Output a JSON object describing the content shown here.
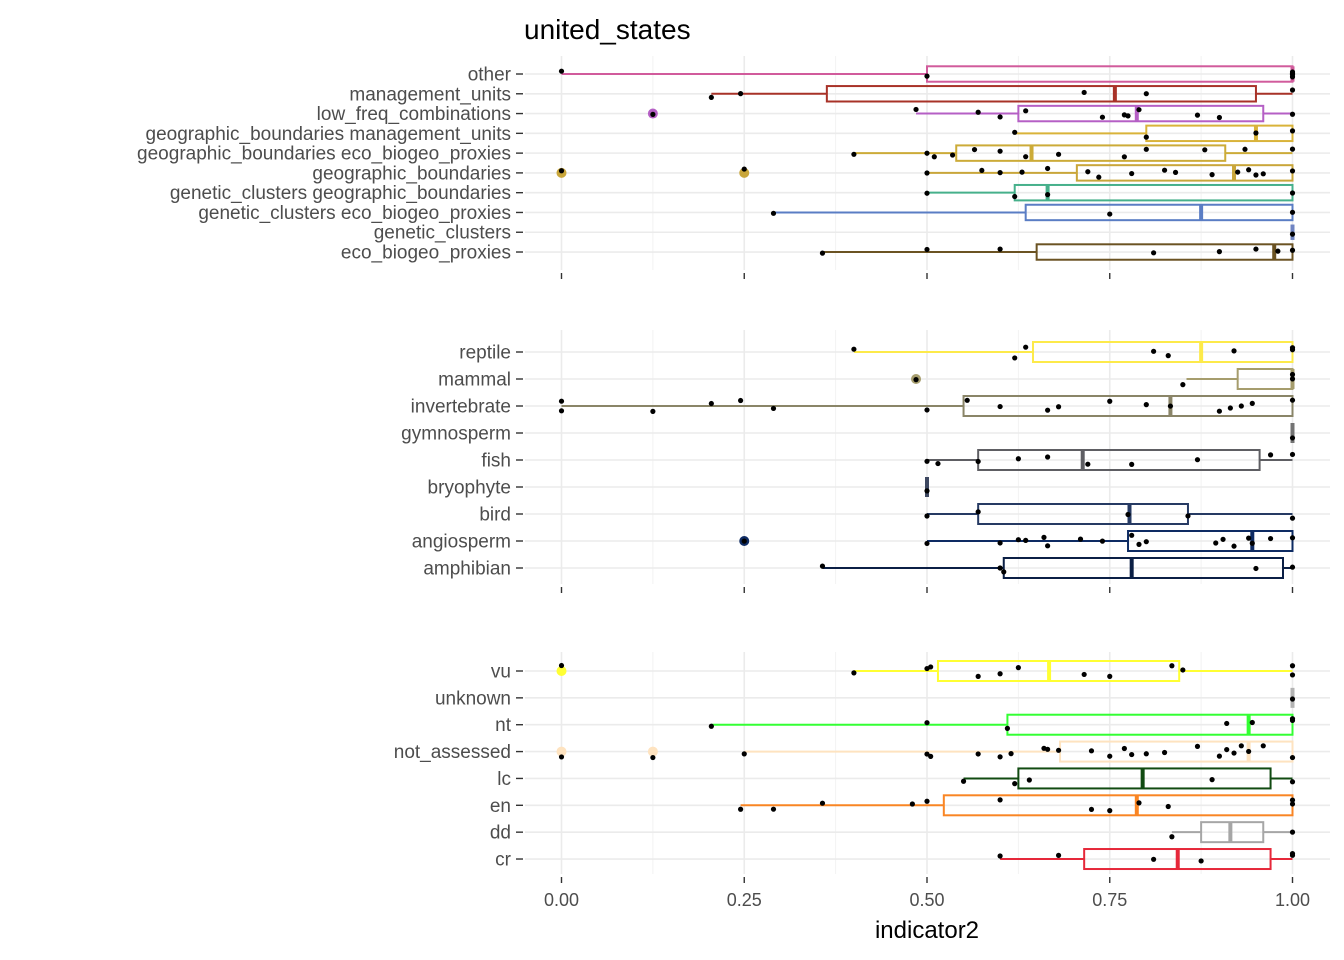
{
  "chart_data": {
    "type": "boxplot",
    "title": "united_states",
    "xlabel": "indicator2",
    "xlim": [
      0,
      1
    ],
    "x_ticks": [
      "0.00",
      "0.25",
      "0.50",
      "0.75",
      "1.00"
    ],
    "x_tick_values": [
      0,
      0.25,
      0.5,
      0.75,
      1.0
    ],
    "grid": true,
    "panels": [
      {
        "name": "panel-1",
        "categories": [
          {
            "label": "other",
            "color": "#d15b9c",
            "min": 0.0,
            "q1": 0.5,
            "median": 1.0,
            "q3": 1.0,
            "max": 1.0,
            "outliers": [],
            "points": [
              0.0,
              0.5,
              1.0,
              1.0,
              1.0,
              1.0
            ]
          },
          {
            "label": "management_units",
            "color": "#a83228",
            "min": 0.205,
            "q1": 0.363,
            "median": 0.757,
            "q3": 0.95,
            "max": 1.0,
            "outliers": [],
            "points": [
              0.205,
              0.245,
              0.715,
              0.8,
              1.0
            ]
          },
          {
            "label": "low_freq_combinations",
            "color": "#b55fc5",
            "min": 0.485,
            "q1": 0.625,
            "median": 0.787,
            "q3": 0.96,
            "max": 1.0,
            "outliers": [
              0.125
            ],
            "points": [
              0.125,
              0.485,
              0.57,
              0.6,
              0.635,
              0.74,
              0.77,
              0.775,
              0.79,
              0.87,
              0.9,
              1.0
            ]
          },
          {
            "label": "geographic_boundaries management_units",
            "color": "#d9b33a",
            "min": 0.62,
            "q1": 0.8,
            "median": 0.95,
            "q3": 1.0,
            "max": 1.0,
            "outliers": [],
            "points": [
              0.62,
              0.8,
              0.95,
              1.0
            ]
          },
          {
            "label": "geographic_boundaries eco_biogeo_proxies",
            "color": "#ccab38",
            "min": 0.4,
            "q1": 0.54,
            "median": 0.643,
            "q3": 0.908,
            "max": 1.0,
            "outliers": [],
            "points": [
              0.4,
              0.5,
              0.51,
              0.535,
              0.565,
              0.6,
              0.635,
              0.68,
              0.77,
              0.8,
              0.88,
              0.935,
              1.0
            ]
          },
          {
            "label": "geographic_boundaries",
            "color": "#c9a63a",
            "min": 0.5,
            "q1": 0.705,
            "median": 0.92,
            "q3": 1.0,
            "max": 1.0,
            "outliers": [
              0.0,
              0.25
            ],
            "points": [
              0.0,
              0.25,
              0.5,
              0.575,
              0.6,
              0.63,
              0.665,
              0.72,
              0.735,
              0.78,
              0.825,
              0.84,
              0.89,
              0.925,
              0.94,
              0.95,
              0.96,
              1.0
            ]
          },
          {
            "label": "genetic_clusters geographic_boundaries",
            "color": "#46b08b",
            "min": 0.5,
            "q1": 0.62,
            "median": 0.665,
            "q3": 1.0,
            "max": 1.0,
            "outliers": [],
            "points": [
              0.5,
              0.62,
              0.665,
              1.0
            ]
          },
          {
            "label": "genetic_clusters eco_biogeo_proxies",
            "color": "#5a7dc4",
            "min": 0.29,
            "q1": 0.635,
            "median": 0.875,
            "q3": 1.0,
            "max": 1.0,
            "outliers": [],
            "points": [
              0.29,
              0.75,
              1.0
            ]
          },
          {
            "label": "genetic_clusters",
            "color": "#6f84c2",
            "min": 1.0,
            "q1": 1.0,
            "median": 1.0,
            "q3": 1.0,
            "max": 1.0,
            "outliers": [],
            "points": [
              1.0
            ]
          },
          {
            "label": "eco_biogeo_proxies",
            "color": "#6b5323",
            "min": 0.357,
            "q1": 0.65,
            "median": 0.975,
            "q3": 1.0,
            "max": 1.0,
            "outliers": [],
            "points": [
              0.357,
              0.5,
              0.6,
              0.81,
              0.9,
              0.95,
              0.98,
              1.0
            ]
          }
        ]
      },
      {
        "name": "panel-2",
        "categories": [
          {
            "label": "reptile",
            "color": "#fdea4a",
            "min": 0.4,
            "q1": 0.645,
            "median": 0.875,
            "q3": 1.0,
            "max": 1.0,
            "outliers": [],
            "points": [
              0.4,
              0.62,
              0.635,
              0.81,
              0.83,
              0.92,
              1.0,
              1.0
            ]
          },
          {
            "label": "mammal",
            "color": "#a69d6d",
            "min": 0.855,
            "q1": 0.925,
            "median": 1.0,
            "q3": 1.0,
            "max": 1.0,
            "outliers": [
              0.485
            ],
            "points": [
              0.485,
              0.85,
              1.0,
              1.0
            ]
          },
          {
            "label": "invertebrate",
            "color": "#8a8568",
            "min": 0.0,
            "q1": 0.55,
            "median": 0.833,
            "q3": 1.0,
            "max": 1.0,
            "outliers": [],
            "points": [
              0.0,
              0.0,
              0.125,
              0.205,
              0.245,
              0.29,
              0.5,
              0.555,
              0.6,
              0.665,
              0.68,
              0.75,
              0.8,
              0.833,
              0.9,
              0.915,
              0.93,
              0.945,
              1.0
            ]
          },
          {
            "label": "gymnosperm",
            "color": "#737373",
            "min": 1.0,
            "q1": 1.0,
            "median": 1.0,
            "q3": 1.0,
            "max": 1.0,
            "outliers": [],
            "points": [
              1.0
            ]
          },
          {
            "label": "fish",
            "color": "#5e5e63",
            "min": 0.5,
            "q1": 0.57,
            "median": 0.713,
            "q3": 0.955,
            "max": 1.0,
            "outliers": [],
            "points": [
              0.5,
              0.515,
              0.57,
              0.625,
              0.665,
              0.72,
              0.78,
              0.87,
              0.97,
              1.0
            ]
          },
          {
            "label": "bryophyte",
            "color": "#3e4861",
            "min": 0.5,
            "q1": 0.5,
            "median": 0.5,
            "q3": 0.5,
            "max": 0.5,
            "outliers": [],
            "points": [
              0.5
            ]
          },
          {
            "label": "bird",
            "color": "#263a63",
            "min": 0.5,
            "q1": 0.57,
            "median": 0.777,
            "q3": 0.857,
            "max": 1.0,
            "outliers": [],
            "points": [
              0.5,
              0.57,
              0.775,
              0.857,
              1.0
            ]
          },
          {
            "label": "angiosperm",
            "color": "#0e2b63",
            "min": 0.5,
            "q1": 0.775,
            "median": 0.945,
            "q3": 1.0,
            "max": 1.0,
            "outliers": [
              0.25
            ],
            "points": [
              0.25,
              0.5,
              0.6,
              0.625,
              0.635,
              0.66,
              0.665,
              0.71,
              0.74,
              0.78,
              0.79,
              0.8,
              0.895,
              0.905,
              0.92,
              0.94,
              0.945,
              0.97,
              1.0
            ]
          },
          {
            "label": "amphibian",
            "color": "#0b1f45",
            "min": 0.357,
            "q1": 0.605,
            "median": 0.78,
            "q3": 0.987,
            "max": 1.0,
            "outliers": [],
            "points": [
              0.357,
              0.6,
              0.605,
              0.95,
              1.0
            ]
          }
        ]
      },
      {
        "name": "panel-3",
        "categories": [
          {
            "label": "vu",
            "color": "#ffff33",
            "min": 0.4,
            "q1": 0.515,
            "median": 0.667,
            "q3": 0.845,
            "max": 1.0,
            "outliers": [
              0.0
            ],
            "points": [
              0.0,
              0.4,
              0.5,
              0.505,
              0.57,
              0.6,
              0.625,
              0.715,
              0.75,
              0.835,
              0.85,
              1.0,
              1.0
            ]
          },
          {
            "label": "unknown",
            "color": "#b3b3b3",
            "min": 1.0,
            "q1": 1.0,
            "median": 1.0,
            "q3": 1.0,
            "max": 1.0,
            "outliers": [],
            "points": [
              1.0
            ]
          },
          {
            "label": "nt",
            "color": "#33ff33",
            "min": 0.205,
            "q1": 0.61,
            "median": 0.94,
            "q3": 1.0,
            "max": 1.0,
            "outliers": [],
            "points": [
              0.205,
              0.5,
              0.61,
              0.91,
              0.945,
              1.0,
              1.0
            ]
          },
          {
            "label": "not_assessed",
            "color": "#fee3c0",
            "min": 0.25,
            "q1": 0.682,
            "median": 0.94,
            "q3": 1.0,
            "max": 1.0,
            "outliers": [
              0.0,
              0.125
            ],
            "points": [
              0.0,
              0.125,
              0.25,
              0.5,
              0.505,
              0.57,
              0.6,
              0.615,
              0.66,
              0.665,
              0.68,
              0.725,
              0.75,
              0.77,
              0.78,
              0.8,
              0.825,
              0.87,
              0.9,
              0.91,
              0.92,
              0.93,
              0.94,
              0.96,
              1.0
            ]
          },
          {
            "label": "lc",
            "color": "#114b12",
            "min": 0.55,
            "q1": 0.625,
            "median": 0.795,
            "q3": 0.97,
            "max": 1.0,
            "outliers": [],
            "points": [
              0.55,
              0.62,
              0.64,
              0.89,
              1.0
            ]
          },
          {
            "label": "en",
            "color": "#f98524",
            "min": 0.245,
            "q1": 0.523,
            "median": 0.787,
            "q3": 1.0,
            "max": 1.0,
            "outliers": [],
            "points": [
              0.245,
              0.29,
              0.357,
              0.48,
              0.5,
              0.6,
              0.725,
              0.75,
              0.79,
              0.83,
              1.0,
              1.0
            ]
          },
          {
            "label": "dd",
            "color": "#a6a6a6",
            "min": 0.835,
            "q1": 0.875,
            "median": 0.915,
            "q3": 0.96,
            "max": 1.0,
            "outliers": [],
            "points": [
              0.835,
              1.0
            ]
          },
          {
            "label": "cr",
            "color": "#e6283a",
            "min": 0.6,
            "q1": 0.715,
            "median": 0.843,
            "q3": 0.97,
            "max": 1.0,
            "outliers": [],
            "points": [
              0.6,
              0.68,
              0.81,
              0.875,
              1.0,
              1.0
            ]
          }
        ]
      }
    ]
  }
}
